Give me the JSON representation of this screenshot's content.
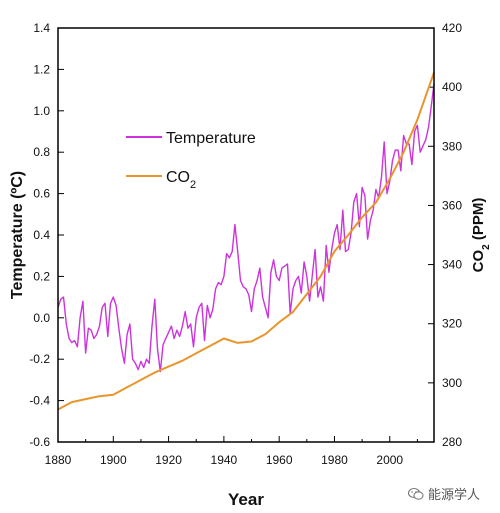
{
  "chart_data": {
    "type": "line",
    "xlabel": "Year",
    "ylabel_left": "Temperature (ºC)",
    "ylabel_right": "CO",
    "ylabel_right_sub": "2",
    "ylabel_right_suffix": " (PPM)",
    "xlim": [
      1880,
      2016
    ],
    "ylim_left": [
      -0.6,
      1.4
    ],
    "ylim_right": [
      280,
      420
    ],
    "x_ticks": [
      "1880",
      "1900",
      "1920",
      "1940",
      "1960",
      "1980",
      "2000"
    ],
    "y_ticks_left": [
      "-0.6",
      "-0.4",
      "-0.2",
      "0.0",
      "0.2",
      "0.4",
      "0.6",
      "0.8",
      "1.0",
      "1.2",
      "1.4"
    ],
    "y_ticks_right": [
      "280",
      "300",
      "320",
      "340",
      "360",
      "380",
      "400",
      "420"
    ],
    "legend": {
      "placement": "upper-left",
      "temperature_label": "Temperature",
      "co2_label": "CO",
      "co2_sub": "2"
    },
    "colors": {
      "temperature": "#cc33dd",
      "co2": "#e8952c"
    },
    "series": [
      {
        "name": "Temperature",
        "axis": "left",
        "x": [
          1880,
          1881,
          1882,
          1883,
          1884,
          1885,
          1886,
          1887,
          1888,
          1889,
          1890,
          1891,
          1892,
          1893,
          1894,
          1895,
          1896,
          1897,
          1898,
          1899,
          1900,
          1901,
          1902,
          1903,
          1904,
          1905,
          1906,
          1907,
          1908,
          1909,
          1910,
          1911,
          1912,
          1913,
          1914,
          1915,
          1916,
          1917,
          1918,
          1919,
          1920,
          1921,
          1922,
          1923,
          1924,
          1925,
          1926,
          1927,
          1928,
          1929,
          1930,
          1931,
          1932,
          1933,
          1934,
          1935,
          1936,
          1937,
          1938,
          1939,
          1940,
          1941,
          1942,
          1943,
          1944,
          1945,
          1946,
          1947,
          1948,
          1949,
          1950,
          1951,
          1952,
          1953,
          1954,
          1955,
          1956,
          1957,
          1958,
          1959,
          1960,
          1961,
          1962,
          1963,
          1964,
          1965,
          1966,
          1967,
          1968,
          1969,
          1970,
          1971,
          1972,
          1973,
          1974,
          1975,
          1976,
          1977,
          1978,
          1979,
          1980,
          1981,
          1982,
          1983,
          1984,
          1985,
          1986,
          1987,
          1988,
          1989,
          1990,
          1991,
          1992,
          1993,
          1994,
          1995,
          1996,
          1997,
          1998,
          1999,
          2000,
          2001,
          2002,
          2003,
          2004,
          2005,
          2006,
          2007,
          2008,
          2009,
          2010,
          2011,
          2012,
          2013,
          2014,
          2015,
          2016
        ],
        "values": [
          0.05,
          0.09,
          0.1,
          -0.03,
          -0.1,
          -0.12,
          -0.11,
          -0.14,
          0.0,
          0.08,
          -0.17,
          -0.05,
          -0.06,
          -0.1,
          -0.08,
          -0.04,
          0.05,
          0.07,
          -0.09,
          0.07,
          0.1,
          0.06,
          -0.05,
          -0.15,
          -0.22,
          -0.08,
          -0.03,
          -0.2,
          -0.22,
          -0.25,
          -0.21,
          -0.24,
          -0.2,
          -0.22,
          -0.04,
          0.09,
          -0.15,
          -0.26,
          -0.13,
          -0.1,
          -0.07,
          -0.04,
          -0.1,
          -0.06,
          -0.09,
          -0.04,
          0.03,
          -0.05,
          -0.03,
          -0.14,
          0.0,
          0.05,
          0.07,
          -0.11,
          0.06,
          0.0,
          0.04,
          0.14,
          0.17,
          0.16,
          0.2,
          0.31,
          0.29,
          0.32,
          0.45,
          0.32,
          0.18,
          0.15,
          0.14,
          0.11,
          0.03,
          0.14,
          0.18,
          0.24,
          0.1,
          0.05,
          0.0,
          0.22,
          0.28,
          0.2,
          0.18,
          0.24,
          0.25,
          0.26,
          0.02,
          0.14,
          0.18,
          0.2,
          0.12,
          0.27,
          0.2,
          0.08,
          0.21,
          0.33,
          0.1,
          0.15,
          0.08,
          0.35,
          0.22,
          0.33,
          0.41,
          0.45,
          0.33,
          0.52,
          0.32,
          0.33,
          0.41,
          0.56,
          0.6,
          0.44,
          0.63,
          0.59,
          0.38,
          0.47,
          0.52,
          0.62,
          0.58,
          0.68,
          0.85,
          0.6,
          0.66,
          0.76,
          0.81,
          0.81,
          0.71,
          0.88,
          0.84,
          0.84,
          0.74,
          0.9,
          0.93,
          0.8,
          0.83,
          0.86,
          0.92,
          1.02,
          1.13
        ]
      },
      {
        "name": "CO2",
        "axis": "right",
        "x": [
          1880,
          1885,
          1890,
          1895,
          1900,
          1905,
          1910,
          1915,
          1920,
          1925,
          1930,
          1935,
          1940,
          1945,
          1950,
          1955,
          1960,
          1965,
          1970,
          1975,
          1980,
          1985,
          1990,
          1995,
          2000,
          2005,
          2010,
          2016
        ],
        "values": [
          291,
          293.5,
          294.5,
          295.5,
          296,
          298.5,
          301,
          303.5,
          305.5,
          307.5,
          310,
          312.5,
          315,
          313.5,
          314,
          316.5,
          320.5,
          324,
          330,
          336,
          344.5,
          350,
          356,
          361,
          369,
          378,
          389,
          405
        ]
      }
    ]
  },
  "watermark": {
    "text": "能源学人",
    "icon": "wechat-icon"
  }
}
